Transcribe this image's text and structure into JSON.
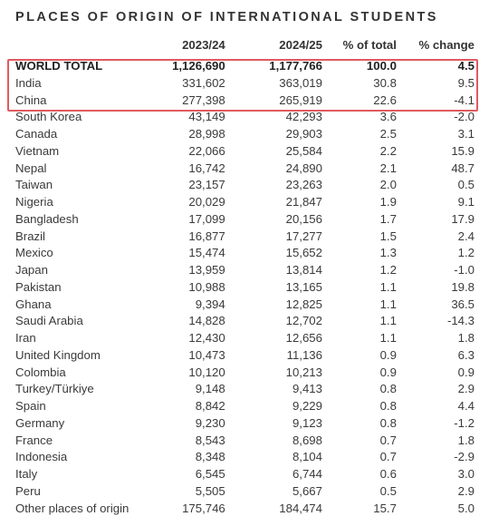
{
  "title": "PLACES OF ORIGIN OF INTERNATIONAL STUDENTS",
  "highlight_color": "#e05a5f",
  "columns": [
    "",
    "2023/24",
    "2024/25",
    "% of total",
    "% change"
  ],
  "rows": [
    [
      "WORLD TOTAL",
      "1,126,690",
      "1,177,766",
      "100.0",
      "4.5"
    ],
    [
      "India",
      "331,602",
      "363,019",
      "30.8",
      "9.5"
    ],
    [
      "China",
      "277,398",
      "265,919",
      "22.6",
      "-4.1"
    ],
    [
      "South Korea",
      "43,149",
      "42,293",
      "3.6",
      "-2.0"
    ],
    [
      "Canada",
      "28,998",
      "29,903",
      "2.5",
      "3.1"
    ],
    [
      "Vietnam",
      "22,066",
      "25,584",
      "2.2",
      "15.9"
    ],
    [
      "Nepal",
      "16,742",
      "24,890",
      "2.1",
      "48.7"
    ],
    [
      "Taiwan",
      "23,157",
      "23,263",
      "2.0",
      "0.5"
    ],
    [
      "Nigeria",
      "20,029",
      "21,847",
      "1.9",
      "9.1"
    ],
    [
      "Bangladesh",
      "17,099",
      "20,156",
      "1.7",
      "17.9"
    ],
    [
      "Brazil",
      "16,877",
      "17,277",
      "1.5",
      "2.4"
    ],
    [
      "Mexico",
      "15,474",
      "15,652",
      "1.3",
      "1.2"
    ],
    [
      "Japan",
      "13,959",
      "13,814",
      "1.2",
      "-1.0"
    ],
    [
      "Pakistan",
      "10,988",
      "13,165",
      "1.1",
      "19.8"
    ],
    [
      "Ghana",
      "9,394",
      "12,825",
      "1.1",
      "36.5"
    ],
    [
      "Saudi Arabia",
      "14,828",
      "12,702",
      "1.1",
      "-14.3"
    ],
    [
      "Iran",
      "12,430",
      "12,656",
      "1.1",
      "1.8"
    ],
    [
      "United Kingdom",
      "10,473",
      "11,136",
      "0.9",
      "6.3"
    ],
    [
      "Colombia",
      "10,120",
      "10,213",
      "0.9",
      "0.9"
    ],
    [
      "Turkey/Türkiye",
      "9,148",
      "9,413",
      "0.8",
      "2.9"
    ],
    [
      "Spain",
      "8,842",
      "9,229",
      "0.8",
      "4.4"
    ],
    [
      "Germany",
      "9,230",
      "9,123",
      "0.8",
      "-1.2"
    ],
    [
      "France",
      "8,543",
      "8,698",
      "0.7",
      "1.8"
    ],
    [
      "Indonesia",
      "8,348",
      "8,104",
      "0.7",
      "-2.9"
    ],
    [
      "Italy",
      "6,545",
      "6,744",
      "0.6",
      "3.0"
    ],
    [
      "Peru",
      "5,505",
      "5,667",
      "0.5",
      "2.9"
    ],
    [
      "Other places of origin",
      "175,746",
      "184,474",
      "15.7",
      "5.0"
    ]
  ]
}
